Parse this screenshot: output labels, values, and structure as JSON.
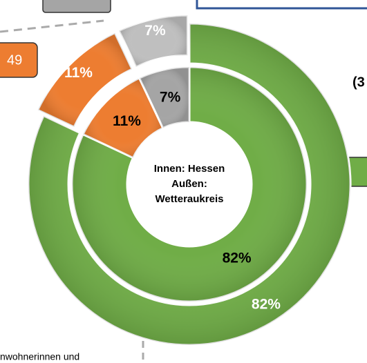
{
  "chart_data": {
    "type": "donut",
    "center_label": [
      "Innen: Hessen",
      "Außen:",
      "Wetteraukreis"
    ],
    "series": [
      {
        "values": [
          82,
          11,
          7
        ],
        "value_labels": [
          "82%",
          "11%",
          "7%"
        ],
        "colors": [
          "#70ad47",
          "#ed7d31",
          "#a5a5a5"
        ]
      },
      {
        "values": [
          82,
          11,
          7
        ],
        "value_labels": [
          "82%",
          "11%",
          "7%"
        ],
        "colors": [
          "#70ad47",
          "#ed7d31",
          "#bfbfbf"
        ]
      }
    ],
    "callouts": [
      "49",
      "(3",
      "nwohnerinnen und"
    ]
  }
}
